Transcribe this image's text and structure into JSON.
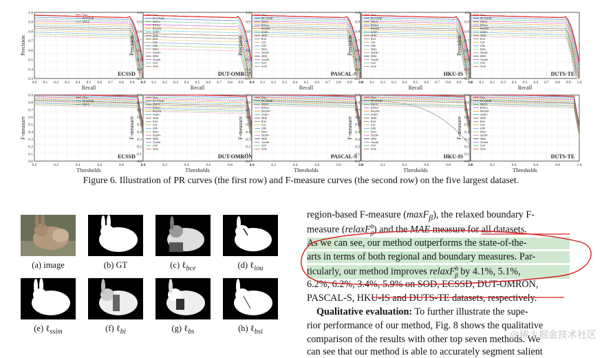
{
  "figure6": {
    "pr_row": {
      "ylabel": "Precision",
      "xlabel": "Recall",
      "datasets": [
        "ECSSD",
        "DUT-OMRON",
        "PASCAL-S",
        "HKU-IS",
        "DUTS-TE"
      ],
      "yticks": [
        "0.3",
        "0.4",
        "0.5",
        "0.6",
        "0.7",
        "0.8",
        "0.9",
        "1.0"
      ],
      "xticks": [
        "0.0",
        "0.1",
        "0.2",
        "0.3",
        "0.4",
        "0.5",
        "0.6",
        "0.7",
        "0.8",
        "0.9",
        "1.0"
      ]
    },
    "f_row": {
      "ylabel": "F-measure",
      "xlabel": "Thresholds",
      "datasets": [
        "ECSSD",
        "DUT-OMRON",
        "PASCAL-S",
        "HKU-IS",
        "DUTS-TE"
      ],
      "yticks": [
        "0.0",
        "0.1",
        "0.2",
        "0.3",
        "0.4",
        "0.5",
        "0.6",
        "0.7",
        "0.8",
        "0.9"
      ],
      "xticks": [
        "0.0",
        "0.2",
        "0.4",
        "0.6",
        "0.8",
        "1.0"
      ]
    },
    "legend": [
      "Ours",
      "PiCANetR",
      "DSCN",
      "R3Net+",
      "PAGRN",
      "SAEF+",
      "SRM",
      "RAS",
      "C2S",
      "LFR",
      "DSS+",
      "NLDF+",
      "SRM",
      "Amulet",
      "UCF",
      "WSS"
    ],
    "caption": "Figure 6. Illustration of PR curves (the first row) and F-measure curves (the second row) on the five largest dataset."
  },
  "figure7": {
    "captions": [
      "(a) image",
      "(b) GT",
      "(c) ℓ",
      "(d) ℓ",
      "(e) ℓ",
      "(f) ℓ",
      "(g) ℓ",
      "(h) ℓ"
    ],
    "subscripts": [
      "",
      "",
      "bce",
      "iou",
      "ssim",
      "bi",
      "bs",
      "bsi"
    ]
  },
  "text": {
    "l1a": "region-based F-measure (",
    "l1b": "maxF",
    "l1c": "β",
    "l1d": "), the relaxed boundary F-",
    "l2a": "measure (",
    "l2b": "relaxF",
    "l2c": "b",
    "l2d": "β",
    "l2e": ") and the ",
    "l2f": "MAE",
    "l2g": " measure for all datasets.",
    "l3": "As we can see, our method outperforms the state-of-the-",
    "l4": "arts in terms of both regional and boundary measures. Par-",
    "l5a": "ticularly, our method improves ",
    "l5b": "relaxF",
    "l5c": "b",
    "l5d": "β",
    "l5e": " by 4.1%, 5.1%,",
    "l6": "6.2%, 6.2%, 3.4%, 5.9% on SOD, ECSSD, DUT-OMRON,",
    "l7": "PASCAL-S, HKU-IS and DUTS-TE datasets, respectively.",
    "l8a": "Qualitative evaluation:",
    "l8b": " To further illustrate the supe-",
    "l9": "rior performance of our method, Fig. 8 shows the qualitative",
    "l10": "comparison of the results with other top seven methods. We",
    "l11": "can see that our method is able to accurately segment salient"
  },
  "watermark": "@稀土掘金技术社区",
  "colors": {
    "ours": "#e0302a",
    "highlight": "#cfe8cf",
    "annotation": "#d42020"
  }
}
